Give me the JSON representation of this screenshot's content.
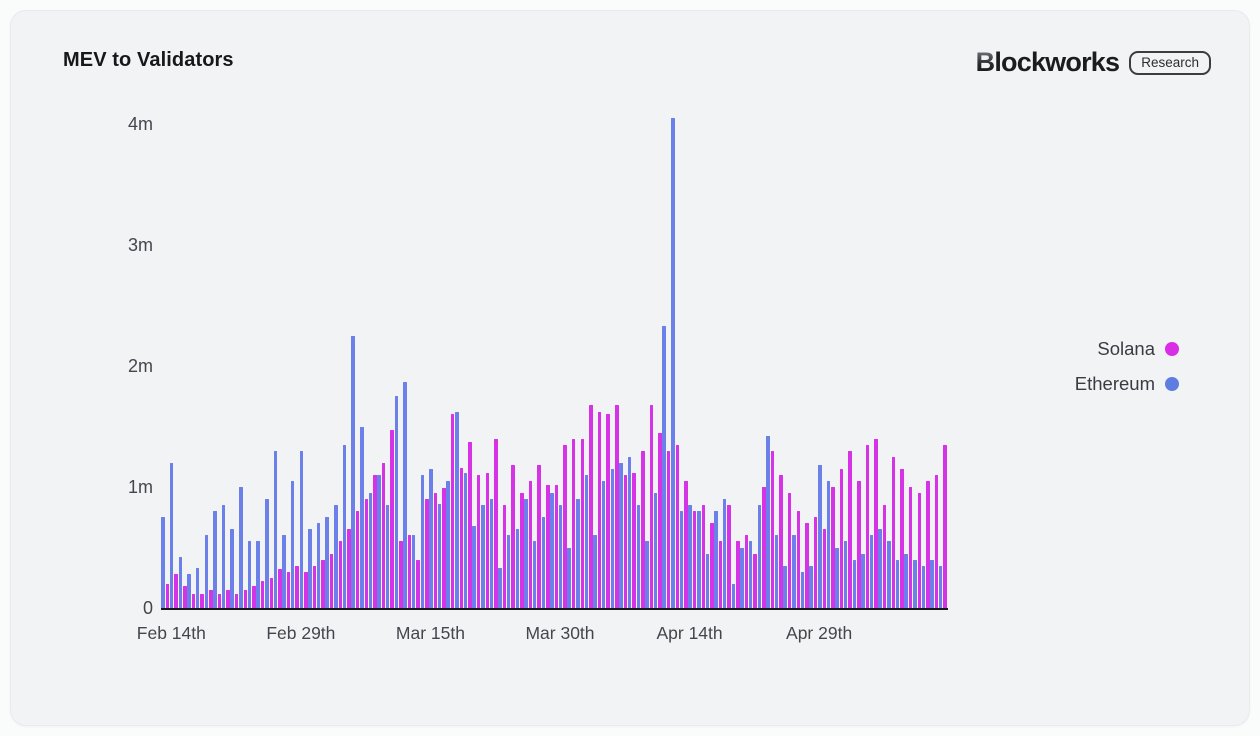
{
  "card": {
    "title": "MEV to Validators"
  },
  "brand": {
    "initial": "B",
    "rest": "lockworks",
    "badge": "Research"
  },
  "legend": {
    "items": [
      {
        "label": "Solana",
        "color": "#d92ee6"
      },
      {
        "label": "Ethereum",
        "color": "#5f7ce0"
      }
    ]
  },
  "chart_data": {
    "type": "bar",
    "title": "MEV to Validators",
    "grid": false,
    "legend_position": "right",
    "ylim": [
      0,
      4.2
    ],
    "y_ticks": [
      {
        "value": 0,
        "label": "0"
      },
      {
        "value": 1,
        "label": "1m"
      },
      {
        "value": 2,
        "label": "2m"
      },
      {
        "value": 3,
        "label": "3m"
      },
      {
        "value": 4,
        "label": "4m"
      }
    ],
    "x_ticks": [
      {
        "index": 0,
        "label": "Feb 14th"
      },
      {
        "index": 15,
        "label": "Feb 29th"
      },
      {
        "index": 30,
        "label": "Mar 15th"
      },
      {
        "index": 45,
        "label": "Mar 30th"
      },
      {
        "index": 60,
        "label": "Apr 14th"
      },
      {
        "index": 75,
        "label": "Apr 29th"
      }
    ],
    "x": [
      "Feb 14",
      "Feb 15",
      "Feb 16",
      "Feb 17",
      "Feb 18",
      "Feb 19",
      "Feb 20",
      "Feb 21",
      "Feb 22",
      "Feb 23",
      "Feb 24",
      "Feb 25",
      "Feb 26",
      "Feb 27",
      "Feb 28",
      "Feb 29",
      "Mar 1",
      "Mar 2",
      "Mar 3",
      "Mar 4",
      "Mar 5",
      "Mar 6",
      "Mar 7",
      "Mar 8",
      "Mar 9",
      "Mar 10",
      "Mar 11",
      "Mar 12",
      "Mar 13",
      "Mar 14",
      "Mar 15",
      "Mar 16",
      "Mar 17",
      "Mar 18",
      "Mar 19",
      "Mar 20",
      "Mar 21",
      "Mar 22",
      "Mar 23",
      "Mar 24",
      "Mar 25",
      "Mar 26",
      "Mar 27",
      "Mar 28",
      "Mar 29",
      "Mar 30",
      "Mar 31",
      "Apr 1",
      "Apr 2",
      "Apr 3",
      "Apr 4",
      "Apr 5",
      "Apr 6",
      "Apr 7",
      "Apr 8",
      "Apr 9",
      "Apr 10",
      "Apr 11",
      "Apr 12",
      "Apr 13",
      "Apr 14",
      "Apr 15",
      "Apr 16",
      "Apr 17",
      "Apr 18",
      "Apr 19",
      "Apr 20",
      "Apr 21",
      "Apr 22",
      "Apr 23",
      "Apr 24",
      "Apr 25",
      "Apr 26",
      "Apr 27",
      "Apr 28",
      "Apr 29",
      "Apr 30",
      "May 1",
      "May 2",
      "May 3",
      "May 4",
      "May 5",
      "May 6",
      "May 7",
      "May 8",
      "May 9",
      "May 10",
      "May 11",
      "May 12",
      "May 13",
      "May 14"
    ],
    "unit": "m",
    "series": [
      {
        "name": "Ethereum",
        "color": "#6b80e8",
        "values": [
          0.75,
          1.2,
          0.42,
          0.28,
          0.33,
          0.6,
          0.8,
          0.85,
          0.65,
          1.0,
          0.55,
          0.55,
          0.9,
          1.3,
          0.6,
          1.05,
          1.3,
          0.65,
          0.7,
          0.75,
          0.85,
          1.35,
          2.25,
          1.5,
          0.95,
          1.1,
          0.85,
          1.75,
          1.87,
          0.6,
          1.1,
          1.15,
          0.86,
          1.05,
          1.62,
          1.12,
          0.68,
          0.85,
          0.9,
          0.33,
          0.6,
          0.65,
          0.9,
          0.55,
          0.75,
          0.95,
          0.85,
          0.5,
          0.9,
          1.1,
          0.6,
          1.05,
          1.15,
          1.2,
          1.25,
          0.85,
          0.55,
          0.95,
          2.33,
          4.05,
          0.8,
          0.85,
          0.8,
          0.45,
          0.8,
          0.9,
          0.2,
          0.5,
          0.55,
          0.85,
          1.42,
          0.6,
          0.35,
          0.6,
          0.3,
          0.35,
          1.18,
          1.05,
          0.5,
          0.55,
          0.4,
          0.45,
          0.6,
          0.65,
          0.55,
          0.4,
          0.45,
          0.4,
          0.35,
          0.4,
          0.35
        ]
      },
      {
        "name": "Solana",
        "color": "#d633e6",
        "values": [
          0.2,
          0.28,
          0.18,
          0.12,
          0.12,
          0.15,
          0.12,
          0.15,
          0.12,
          0.15,
          0.18,
          0.22,
          0.25,
          0.32,
          0.3,
          0.35,
          0.3,
          0.35,
          0.4,
          0.45,
          0.55,
          0.65,
          0.8,
          0.9,
          1.1,
          1.2,
          1.47,
          0.55,
          0.6,
          0.4,
          0.9,
          0.95,
          0.99,
          1.6,
          1.16,
          1.37,
          1.1,
          1.12,
          1.4,
          0.85,
          1.18,
          0.95,
          1.05,
          1.18,
          1.02,
          1.02,
          1.35,
          1.4,
          1.4,
          1.68,
          1.62,
          1.6,
          1.68,
          1.1,
          1.12,
          1.3,
          1.68,
          1.45,
          1.3,
          1.35,
          1.05,
          0.8,
          0.85,
          0.7,
          0.55,
          0.85,
          0.55,
          0.6,
          0.45,
          1.0,
          1.3,
          1.1,
          0.95,
          0.8,
          0.7,
          0.75,
          0.65,
          1.0,
          1.15,
          1.3,
          1.05,
          1.35,
          1.4,
          0.85,
          1.25,
          1.15,
          1.0,
          0.95,
          1.05,
          1.1,
          1.35
        ]
      }
    ]
  }
}
